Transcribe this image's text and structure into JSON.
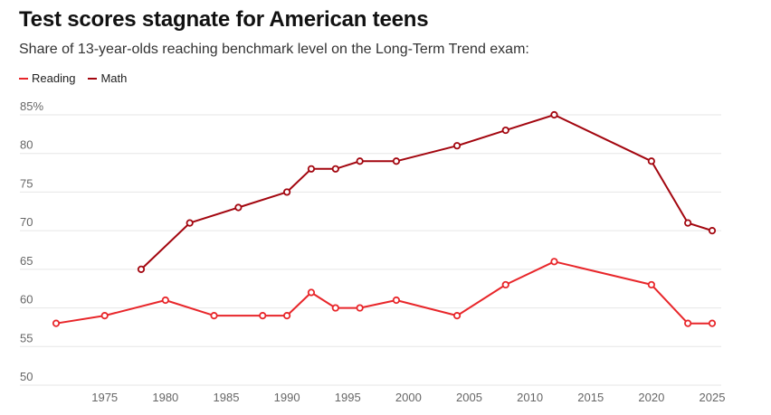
{
  "header": {
    "title": "Test scores stagnate for American teens",
    "subtitle": "Share of 13-year-olds reaching benchmark level on the Long-Term Trend exam:"
  },
  "colors": {
    "reading": "#e8262a",
    "math": "#a3060f",
    "grid": "#e6e6e6",
    "tick_text": "#666666"
  },
  "chart_data": {
    "type": "line",
    "title": "Test scores stagnate for American teens",
    "subtitle": "Share of 13-year-olds reaching benchmark level on the Long-Term Trend exam:",
    "xlabel": "",
    "ylabel": "",
    "xlim": [
      1970,
      2026
    ],
    "ylim": [
      50,
      85
    ],
    "grid": true,
    "legend_position": "top-left",
    "x_ticks": [
      1975,
      1980,
      1985,
      1990,
      1995,
      2000,
      2005,
      2010,
      2015,
      2020,
      2025
    ],
    "x_tick_labels": [
      "1975",
      "1980",
      "1985",
      "1990",
      "1995",
      "2000",
      "2005",
      "2010",
      "2015",
      "2020",
      "2025"
    ],
    "y_ticks": [
      50,
      55,
      60,
      65,
      70,
      75,
      80,
      85
    ],
    "y_tick_labels": [
      "50",
      "55",
      "60",
      "65",
      "70",
      "75",
      "80",
      "85%"
    ],
    "series": [
      {
        "name": "Reading",
        "color": "#e8262a",
        "x": [
          1971,
          1975,
          1980,
          1984,
          1988,
          1990,
          1992,
          1994,
          1996,
          1999,
          2004,
          2008,
          2012,
          2020,
          2023,
          2025
        ],
        "y": [
          58,
          59,
          61,
          59,
          59,
          59,
          62,
          60,
          60,
          61,
          59,
          63,
          66,
          63,
          58,
          58
        ]
      },
      {
        "name": "Math",
        "color": "#a3060f",
        "x": [
          1978,
          1982,
          1986,
          1990,
          1992,
          1994,
          1996,
          1999,
          2004,
          2008,
          2012,
          2020,
          2023,
          2025
        ],
        "y": [
          65,
          71,
          73,
          75,
          78,
          78,
          79,
          79,
          81,
          83,
          85,
          79,
          71,
          70
        ]
      }
    ]
  }
}
